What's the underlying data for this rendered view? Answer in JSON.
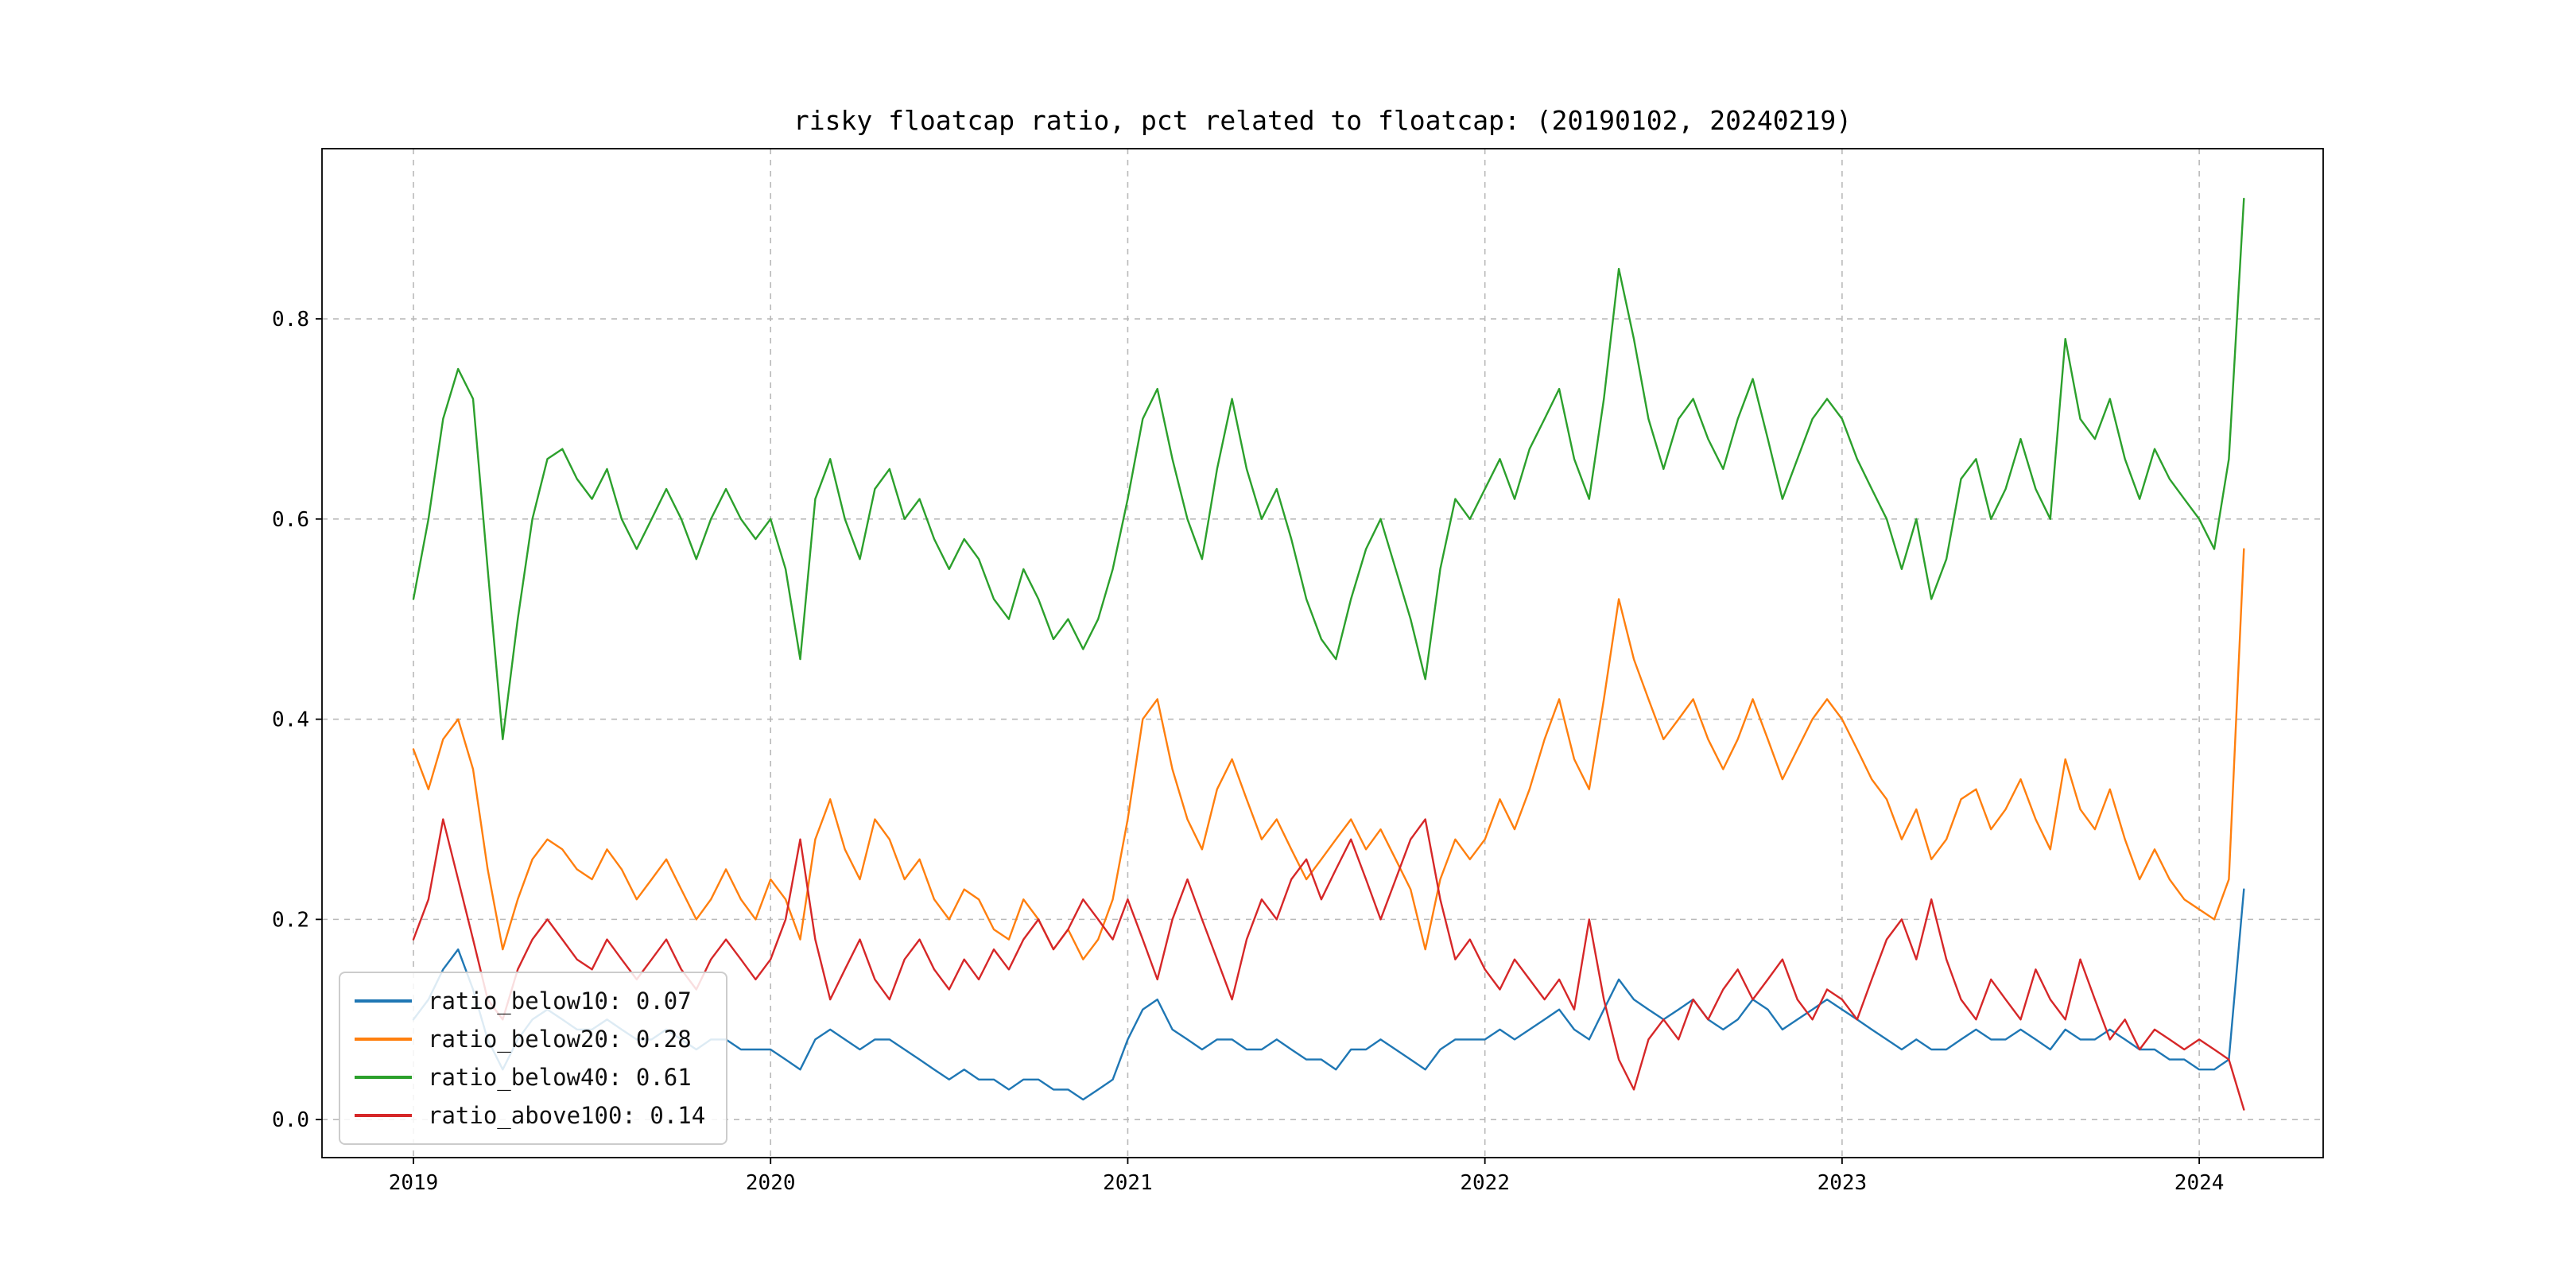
{
  "page": {
    "background": "#ffffff"
  },
  "chart_data": {
    "type": "line",
    "title": "risky floatcap ratio, pct related to floatcap: (20190102, 20240219)",
    "xlabel": "",
    "ylabel": "",
    "grid": true,
    "grid_style": "dashed",
    "grid_color": "#b9b9b9",
    "legend_position": "lower left",
    "xlim": [
      2018.744,
      2024.347
    ],
    "ylim": [
      -0.038,
      0.97
    ],
    "xticks": [
      2019,
      2020,
      2021,
      2022,
      2023,
      2024
    ],
    "yticks": [
      0.0,
      0.2,
      0.4,
      0.6,
      0.8
    ],
    "x": [
      2019.0,
      2019.042,
      2019.083,
      2019.125,
      2019.167,
      2019.208,
      2019.25,
      2019.292,
      2019.333,
      2019.375,
      2019.417,
      2019.458,
      2019.5,
      2019.542,
      2019.583,
      2019.625,
      2019.667,
      2019.708,
      2019.75,
      2019.792,
      2019.833,
      2019.875,
      2019.917,
      2019.958,
      2020.0,
      2020.042,
      2020.083,
      2020.125,
      2020.167,
      2020.208,
      2020.25,
      2020.292,
      2020.333,
      2020.375,
      2020.417,
      2020.458,
      2020.5,
      2020.542,
      2020.583,
      2020.625,
      2020.667,
      2020.708,
      2020.75,
      2020.792,
      2020.833,
      2020.875,
      2020.917,
      2020.958,
      2021.0,
      2021.042,
      2021.083,
      2021.125,
      2021.167,
      2021.208,
      2021.25,
      2021.292,
      2021.333,
      2021.375,
      2021.417,
      2021.458,
      2021.5,
      2021.542,
      2021.583,
      2021.625,
      2021.667,
      2021.708,
      2021.75,
      2021.792,
      2021.833,
      2021.875,
      2021.917,
      2021.958,
      2022.0,
      2022.042,
      2022.083,
      2022.125,
      2022.167,
      2022.208,
      2022.25,
      2022.292,
      2022.333,
      2022.375,
      2022.417,
      2022.458,
      2022.5,
      2022.542,
      2022.583,
      2022.625,
      2022.667,
      2022.708,
      2022.75,
      2022.792,
      2022.833,
      2022.875,
      2022.917,
      2022.958,
      2023.0,
      2023.042,
      2023.083,
      2023.125,
      2023.167,
      2023.208,
      2023.25,
      2023.292,
      2023.333,
      2023.375,
      2023.417,
      2023.458,
      2023.5,
      2023.542,
      2023.583,
      2023.625,
      2023.667,
      2023.708,
      2023.75,
      2023.792,
      2023.833,
      2023.875,
      2023.917,
      2023.958,
      2024.0,
      2024.042,
      2024.083,
      2024.125
    ],
    "series": [
      {
        "name": "ratio_below10",
        "legend_label": "ratio_below10: 0.07",
        "color": "#1f77b4",
        "values": [
          0.1,
          0.12,
          0.15,
          0.17,
          0.13,
          0.08,
          0.05,
          0.08,
          0.1,
          0.11,
          0.1,
          0.09,
          0.09,
          0.1,
          0.09,
          0.08,
          0.08,
          0.09,
          0.08,
          0.07,
          0.08,
          0.08,
          0.07,
          0.07,
          0.07,
          0.06,
          0.05,
          0.08,
          0.09,
          0.08,
          0.07,
          0.08,
          0.08,
          0.07,
          0.06,
          0.05,
          0.04,
          0.05,
          0.04,
          0.04,
          0.03,
          0.04,
          0.04,
          0.03,
          0.03,
          0.02,
          0.03,
          0.04,
          0.08,
          0.11,
          0.12,
          0.09,
          0.08,
          0.07,
          0.08,
          0.08,
          0.07,
          0.07,
          0.08,
          0.07,
          0.06,
          0.06,
          0.05,
          0.07,
          0.07,
          0.08,
          0.07,
          0.06,
          0.05,
          0.07,
          0.08,
          0.08,
          0.08,
          0.09,
          0.08,
          0.09,
          0.1,
          0.11,
          0.09,
          0.08,
          0.11,
          0.14,
          0.12,
          0.11,
          0.1,
          0.11,
          0.12,
          0.1,
          0.09,
          0.1,
          0.12,
          0.11,
          0.09,
          0.1,
          0.11,
          0.12,
          0.11,
          0.1,
          0.09,
          0.08,
          0.07,
          0.08,
          0.07,
          0.07,
          0.08,
          0.09,
          0.08,
          0.08,
          0.09,
          0.08,
          0.07,
          0.09,
          0.08,
          0.08,
          0.09,
          0.08,
          0.07,
          0.07,
          0.06,
          0.06,
          0.05,
          0.05,
          0.06,
          0.23
        ]
      },
      {
        "name": "ratio_below20",
        "legend_label": "ratio_below20: 0.28",
        "color": "#ff7f0e",
        "values": [
          0.37,
          0.33,
          0.38,
          0.4,
          0.35,
          0.25,
          0.17,
          0.22,
          0.26,
          0.28,
          0.27,
          0.25,
          0.24,
          0.27,
          0.25,
          0.22,
          0.24,
          0.26,
          0.23,
          0.2,
          0.22,
          0.25,
          0.22,
          0.2,
          0.24,
          0.22,
          0.18,
          0.28,
          0.32,
          0.27,
          0.24,
          0.3,
          0.28,
          0.24,
          0.26,
          0.22,
          0.2,
          0.23,
          0.22,
          0.19,
          0.18,
          0.22,
          0.2,
          0.17,
          0.19,
          0.16,
          0.18,
          0.22,
          0.3,
          0.4,
          0.42,
          0.35,
          0.3,
          0.27,
          0.33,
          0.36,
          0.32,
          0.28,
          0.3,
          0.27,
          0.24,
          0.26,
          0.28,
          0.3,
          0.27,
          0.29,
          0.26,
          0.23,
          0.17,
          0.24,
          0.28,
          0.26,
          0.28,
          0.32,
          0.29,
          0.33,
          0.38,
          0.42,
          0.36,
          0.33,
          0.42,
          0.52,
          0.46,
          0.42,
          0.38,
          0.4,
          0.42,
          0.38,
          0.35,
          0.38,
          0.42,
          0.38,
          0.34,
          0.37,
          0.4,
          0.42,
          0.4,
          0.37,
          0.34,
          0.32,
          0.28,
          0.31,
          0.26,
          0.28,
          0.32,
          0.33,
          0.29,
          0.31,
          0.34,
          0.3,
          0.27,
          0.36,
          0.31,
          0.29,
          0.33,
          0.28,
          0.24,
          0.27,
          0.24,
          0.22,
          0.21,
          0.2,
          0.24,
          0.57
        ]
      },
      {
        "name": "ratio_below40",
        "legend_label": "ratio_below40: 0.61",
        "color": "#2ca02c",
        "values": [
          0.52,
          0.6,
          0.7,
          0.75,
          0.72,
          0.55,
          0.38,
          0.5,
          0.6,
          0.66,
          0.67,
          0.64,
          0.62,
          0.65,
          0.6,
          0.57,
          0.6,
          0.63,
          0.6,
          0.56,
          0.6,
          0.63,
          0.6,
          0.58,
          0.6,
          0.55,
          0.46,
          0.62,
          0.66,
          0.6,
          0.56,
          0.63,
          0.65,
          0.6,
          0.62,
          0.58,
          0.55,
          0.58,
          0.56,
          0.52,
          0.5,
          0.55,
          0.52,
          0.48,
          0.5,
          0.47,
          0.5,
          0.55,
          0.62,
          0.7,
          0.73,
          0.66,
          0.6,
          0.56,
          0.65,
          0.72,
          0.65,
          0.6,
          0.63,
          0.58,
          0.52,
          0.48,
          0.46,
          0.52,
          0.57,
          0.6,
          0.55,
          0.5,
          0.44,
          0.55,
          0.62,
          0.6,
          0.63,
          0.66,
          0.62,
          0.67,
          0.7,
          0.73,
          0.66,
          0.62,
          0.72,
          0.85,
          0.78,
          0.7,
          0.65,
          0.7,
          0.72,
          0.68,
          0.65,
          0.7,
          0.74,
          0.68,
          0.62,
          0.66,
          0.7,
          0.72,
          0.7,
          0.66,
          0.63,
          0.6,
          0.55,
          0.6,
          0.52,
          0.56,
          0.64,
          0.66,
          0.6,
          0.63,
          0.68,
          0.63,
          0.6,
          0.78,
          0.7,
          0.68,
          0.72,
          0.66,
          0.62,
          0.67,
          0.64,
          0.62,
          0.6,
          0.57,
          0.66,
          0.92
        ]
      },
      {
        "name": "ratio_above100",
        "legend_label": "ratio_above100: 0.14",
        "color": "#d62728",
        "values": [
          0.18,
          0.22,
          0.3,
          0.24,
          0.18,
          0.12,
          0.1,
          0.15,
          0.18,
          0.2,
          0.18,
          0.16,
          0.15,
          0.18,
          0.16,
          0.14,
          0.16,
          0.18,
          0.15,
          0.13,
          0.16,
          0.18,
          0.16,
          0.14,
          0.16,
          0.2,
          0.28,
          0.18,
          0.12,
          0.15,
          0.18,
          0.14,
          0.12,
          0.16,
          0.18,
          0.15,
          0.13,
          0.16,
          0.14,
          0.17,
          0.15,
          0.18,
          0.2,
          0.17,
          0.19,
          0.22,
          0.2,
          0.18,
          0.22,
          0.18,
          0.14,
          0.2,
          0.24,
          0.2,
          0.16,
          0.12,
          0.18,
          0.22,
          0.2,
          0.24,
          0.26,
          0.22,
          0.25,
          0.28,
          0.24,
          0.2,
          0.24,
          0.28,
          0.3,
          0.22,
          0.16,
          0.18,
          0.15,
          0.13,
          0.16,
          0.14,
          0.12,
          0.14,
          0.11,
          0.2,
          0.12,
          0.06,
          0.03,
          0.08,
          0.1,
          0.08,
          0.12,
          0.1,
          0.13,
          0.15,
          0.12,
          0.14,
          0.16,
          0.12,
          0.1,
          0.13,
          0.12,
          0.1,
          0.14,
          0.18,
          0.2,
          0.16,
          0.22,
          0.16,
          0.12,
          0.1,
          0.14,
          0.12,
          0.1,
          0.15,
          0.12,
          0.1,
          0.16,
          0.12,
          0.08,
          0.1,
          0.07,
          0.09,
          0.08,
          0.07,
          0.08,
          0.07,
          0.06,
          0.01
        ]
      }
    ]
  }
}
